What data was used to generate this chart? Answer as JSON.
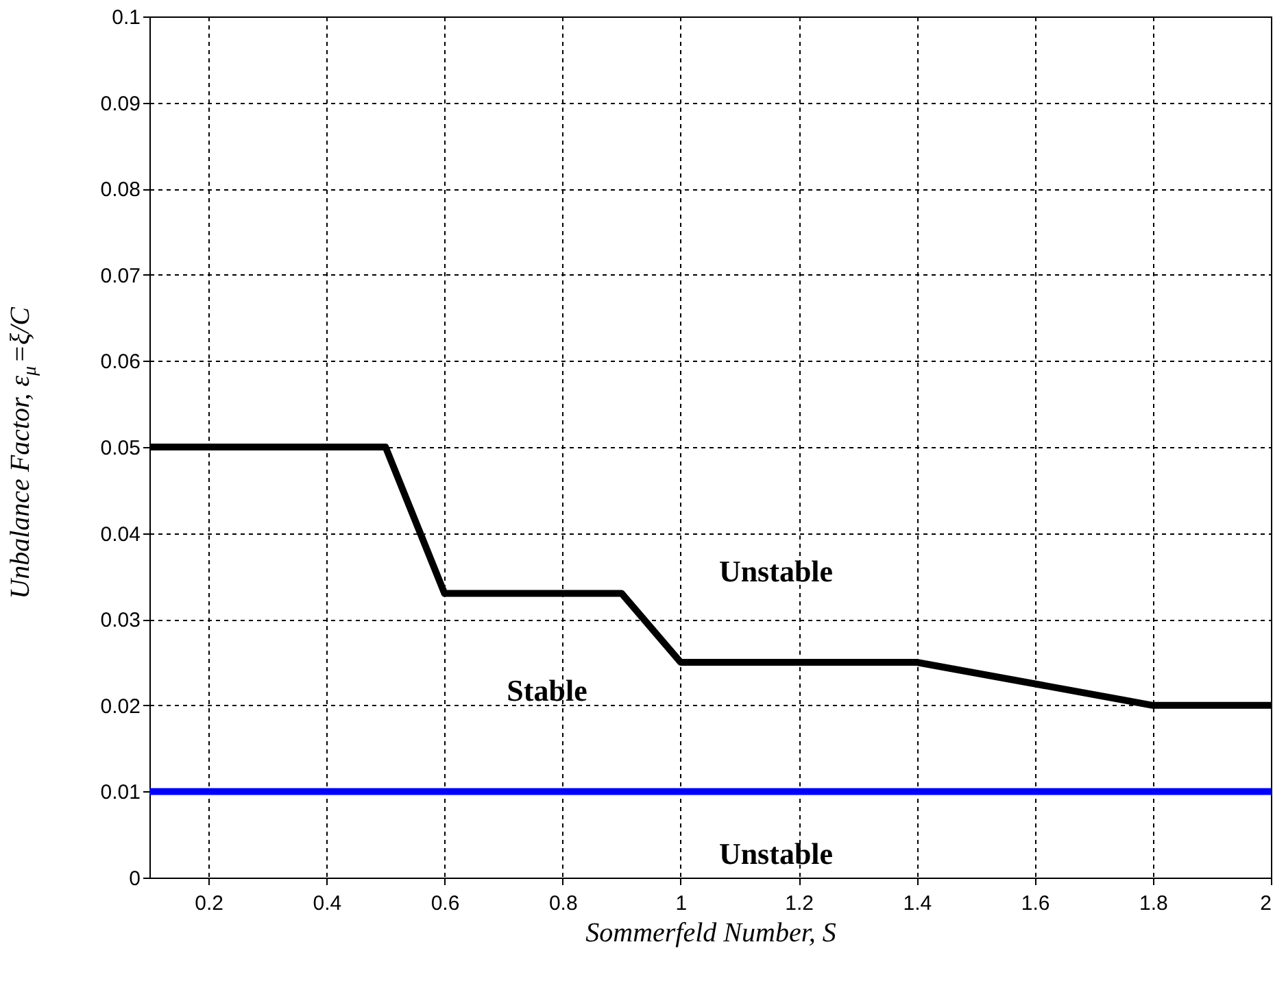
{
  "chart_data": {
    "type": "line",
    "xlabel": "Sommerfeld Number, S",
    "ylabel": "Unbalance Factor, ε$_{μ}$=ξ/C",
    "xlim": [
      0.1,
      2
    ],
    "xticks": [
      0.2,
      0.4,
      0.6,
      0.8,
      1,
      1.2,
      1.4,
      1.6,
      1.8,
      2
    ],
    "ylim": [
      0,
      0.1
    ],
    "yticks": [
      0,
      0.01,
      0.02,
      0.03,
      0.04,
      0.05,
      0.06,
      0.07,
      0.08,
      0.09,
      0.1
    ],
    "grid": true,
    "line_style": "solid",
    "marker": "none",
    "series": [
      {
        "color": "#000000",
        "x": [
          0.1,
          0.5,
          0.6,
          0.9,
          1.0,
          1.4,
          1.8,
          2.0
        ],
        "values": [
          0.05,
          0.05,
          0.033,
          0.033,
          0.025,
          0.025,
          0.02,
          0.02
        ]
      },
      {
        "color": "#0000ff",
        "x": [
          0.1,
          2.0
        ],
        "values": [
          0.01,
          0.01
        ]
      }
    ],
    "annotations": [
      "Unstable",
      "Stable",
      "Unstable"
    ]
  }
}
